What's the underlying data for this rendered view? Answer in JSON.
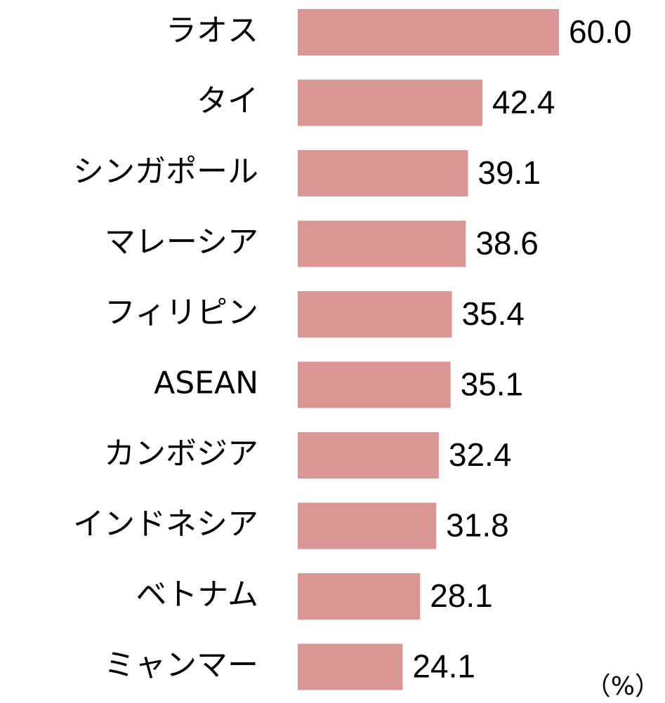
{
  "chart_data": {
    "type": "bar",
    "orientation": "horizontal",
    "categories": [
      "ラオス",
      "タイ",
      "シンガポール",
      "マレーシア",
      "フィリピン",
      "ASEAN",
      "カンボジア",
      "インドネシア",
      "ベトナム",
      "ミャンマー"
    ],
    "values": [
      60.0,
      42.4,
      39.1,
      38.6,
      35.4,
      35.1,
      32.4,
      31.8,
      28.1,
      24.1
    ],
    "value_labels": [
      "60.0",
      "42.4",
      "39.1",
      "38.6",
      "35.4",
      "35.1",
      "32.4",
      "31.8",
      "28.1",
      "24.1"
    ],
    "color": "#d99694",
    "unit": "（%）"
  }
}
